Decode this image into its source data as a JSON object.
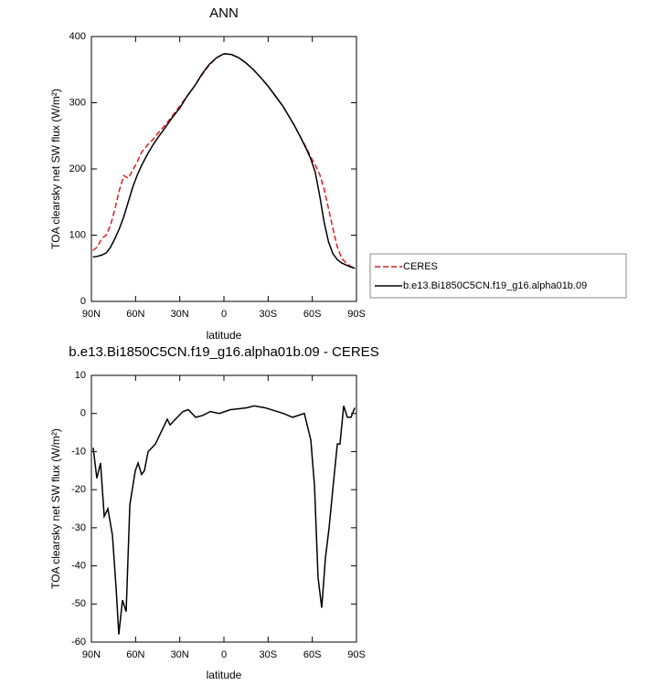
{
  "chart_data": [
    {
      "type": "line",
      "title": "ANN",
      "xlabel": "latitude",
      "ylabel": "TOA clearsky net SW flux (W/m²)",
      "xlim": [
        90,
        -90
      ],
      "xticks": [
        {
          "value": 90,
          "label": "90N"
        },
        {
          "value": 60,
          "label": "60N"
        },
        {
          "value": 30,
          "label": "30N"
        },
        0,
        {
          "value": -30,
          "label": "30S"
        },
        {
          "value": -60,
          "label": "60S"
        },
        {
          "value": -90,
          "label": "90S"
        }
      ],
      "ylim": [
        0,
        400
      ],
      "yticks": [
        0,
        100,
        200,
        300,
        400
      ],
      "legend": "right",
      "series": [
        {
          "name": "CERES",
          "color": "#e41a1c",
          "style": "dashed",
          "x": [
            89,
            86,
            83,
            80,
            77,
            74,
            71,
            68,
            65,
            62,
            59,
            56,
            52,
            48,
            44,
            40,
            35,
            30,
            25,
            20,
            15,
            10,
            5,
            0,
            -5,
            -10,
            -15,
            -20,
            -25,
            -30,
            -35,
            -40,
            -44,
            -48,
            -52,
            -56,
            -59,
            -62,
            -65,
            -68,
            -71,
            -74,
            -77,
            -80,
            -83,
            -86,
            -89
          ],
          "values": [
            77,
            82,
            95,
            100,
            115,
            140,
            168,
            190,
            186,
            198,
            210,
            225,
            236,
            245,
            256,
            266,
            280,
            295,
            310,
            325,
            342,
            357,
            368,
            374,
            373,
            368,
            360,
            350,
            338,
            325,
            310,
            295,
            280,
            265,
            248,
            232,
            218,
            206,
            192,
            170,
            140,
            110,
            82,
            65,
            58,
            53,
            50
          ]
        },
        {
          "name": "b.e13.Bi1850C5CN.f19_g16.alpha01b.09",
          "color": "#000000",
          "style": "solid",
          "x": [
            89,
            86,
            83,
            80,
            77,
            74,
            71,
            68,
            65,
            62,
            59,
            56,
            52,
            48,
            44,
            40,
            35,
            30,
            25,
            20,
            15,
            10,
            5,
            0,
            -5,
            -10,
            -15,
            -20,
            -25,
            -30,
            -35,
            -40,
            -44,
            -48,
            -52,
            -56,
            -59,
            -62,
            -65,
            -68,
            -71,
            -74,
            -77,
            -80,
            -83,
            -86,
            -89
          ],
          "values": [
            67,
            68,
            70,
            73,
            82,
            95,
            110,
            128,
            150,
            172,
            190,
            205,
            222,
            237,
            250,
            262,
            278,
            292,
            310,
            325,
            343,
            358,
            368,
            374,
            373,
            368,
            360,
            350,
            338,
            325,
            310,
            295,
            280,
            265,
            248,
            230,
            215,
            195,
            160,
            120,
            90,
            72,
            63,
            58,
            55,
            52,
            50
          ]
        }
      ]
    },
    {
      "type": "line",
      "title": "b.e13.Bi1850C5CN.f19_g16.alpha01b.09 - CERES",
      "xlabel": "latitude",
      "ylabel": "TOA clearsky net SW flux (W/m²)",
      "xlim": [
        90,
        -90
      ],
      "xticks": [
        {
          "value": 90,
          "label": "90N"
        },
        {
          "value": 60,
          "label": "60N"
        },
        {
          "value": 30,
          "label": "30N"
        },
        0,
        {
          "value": -30,
          "label": "30S"
        },
        {
          "value": -60,
          "label": "60S"
        },
        {
          "value": -90,
          "label": "90S"
        }
      ],
      "ylim": [
        -60,
        10
      ],
      "yticks": [
        -60,
        -50,
        -40,
        -30,
        -20,
        -10,
        0,
        10
      ],
      "series": [
        {
          "color": "#000000",
          "style": "solid",
          "x": [
            88.8,
            86.3,
            83.8,
            81.3,
            78.8,
            75.7,
            73.2,
            71.4,
            68.9,
            66.4,
            63.9,
            60.2,
            58.3,
            55.9,
            54.0,
            51.5,
            46.5,
            41.6,
            38.5,
            36.6,
            32.9,
            27.9,
            24.2,
            19.2,
            14.3,
            9.3,
            3.1,
            -4.4,
            -15.5,
            -20.5,
            -27.9,
            -40.4,
            -46.6,
            -54.6,
            -59.0,
            -61.5,
            -63.9,
            -66.4,
            -68.9,
            -71.4,
            -73.9,
            -77.0,
            -78.8,
            -81.3,
            -83.8,
            -86.3,
            -88.8
          ],
          "values": [
            -9,
            -17,
            -13,
            -27,
            -25,
            -32,
            -46,
            -58,
            -49,
            -52,
            -24,
            -15,
            -13,
            -16,
            -15,
            -10,
            -8,
            -4,
            -1.5,
            -3,
            -1.5,
            0.5,
            1,
            -1,
            -0.5,
            0.5,
            0,
            1,
            1.5,
            2,
            1.5,
            0,
            -1,
            0,
            -7,
            -19,
            -43,
            -51,
            -38,
            -30,
            -20,
            -8,
            -8,
            2,
            -1,
            -1,
            1.5
          ]
        }
      ]
    }
  ]
}
